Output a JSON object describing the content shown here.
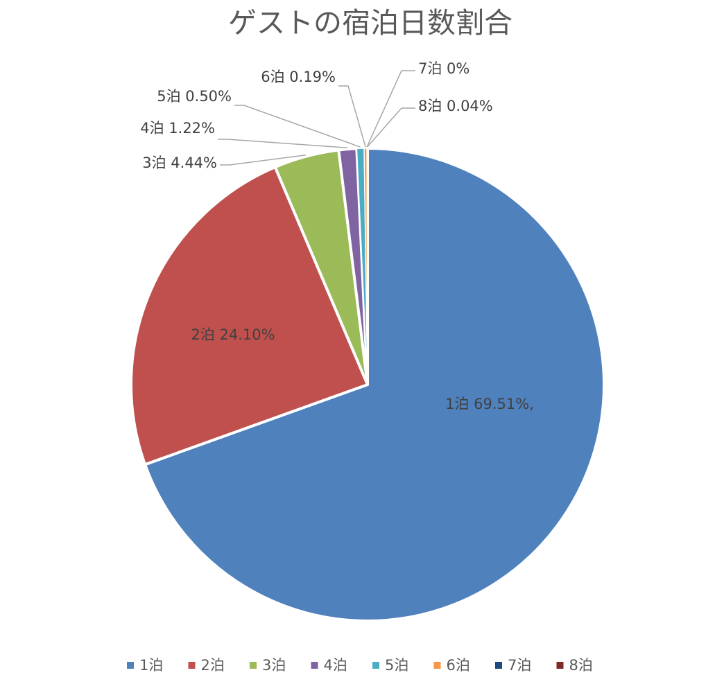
{
  "chart_data": {
    "type": "pie",
    "title": "ゲストの宿泊日数割合",
    "legend_position": "bottom",
    "slices": [
      {
        "name": "1泊",
        "value": 69.51,
        "label": "1泊  69.51%,",
        "color": "#4F81BD"
      },
      {
        "name": "2泊",
        "value": 24.1,
        "label": "2泊 24.10%",
        "color": "#C0504D"
      },
      {
        "name": "3泊",
        "value": 4.44,
        "label": "3泊 4.44%",
        "color": "#9BBB59"
      },
      {
        "name": "4泊",
        "value": 1.22,
        "label": "4泊 1.22%",
        "color": "#8064A2"
      },
      {
        "name": "5泊",
        "value": 0.5,
        "label": "5泊 0.50%",
        "color": "#4BACC6"
      },
      {
        "name": "6泊",
        "value": 0.19,
        "label": "6泊 0.19%",
        "color": "#F79646"
      },
      {
        "name": "7泊",
        "value": 0,
        "label": "7泊 0%",
        "color": "#1F497D"
      },
      {
        "name": "8泊",
        "value": 0.04,
        "label": "8泊 0.04%",
        "color": "#7F2A25"
      }
    ]
  }
}
